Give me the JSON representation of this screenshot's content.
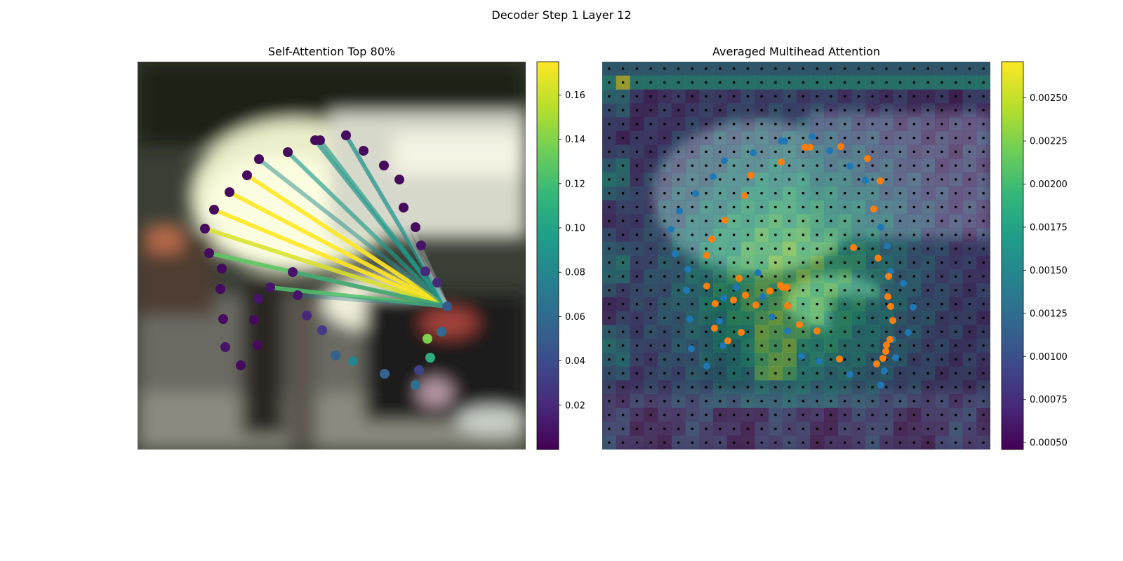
{
  "figure": {
    "title": "Decoder Step 1 Layer 12"
  },
  "colors": {
    "viridis": [
      "#440154",
      "#482878",
      "#3e4a89",
      "#31688e",
      "#26828e",
      "#1f9e89",
      "#35b779",
      "#6ece58",
      "#b5de2b",
      "#fde725"
    ],
    "orange": "#ff7f0e",
    "blue": "#1f77b4",
    "bg_dark": "#1e2a24",
    "bg_light": "#e8eed8"
  },
  "chart_data": [
    {
      "type": "scatter",
      "title": "Self-Attention Top 80%",
      "description_of_marks": "sampling points colored by attention weight, lines from query point to top-weighted points",
      "colorbar": {
        "range": [
          0.0,
          0.175
        ],
        "ticks": [
          0.02,
          0.04,
          0.06,
          0.08,
          0.1,
          0.12,
          0.14,
          0.16
        ],
        "tick_labels": [
          "0.02",
          "0.04",
          "0.06",
          "0.08",
          "0.10",
          "0.12",
          "0.14",
          "0.16"
        ]
      },
      "query_point": {
        "x": 637,
        "y": 437,
        "value": 0.05
      },
      "points": [
        {
          "x": 493,
          "y": 193,
          "value": 0.005
        },
        {
          "x": 518,
          "y": 215,
          "value": 0.005
        },
        {
          "x": 547,
          "y": 236,
          "value": 0.005
        },
        {
          "x": 569,
          "y": 256,
          "value": 0.005
        },
        {
          "x": 575,
          "y": 296,
          "value": 0.005
        },
        {
          "x": 592,
          "y": 324,
          "value": 0.005
        },
        {
          "x": 600,
          "y": 350,
          "value": 0.01
        },
        {
          "x": 606,
          "y": 387,
          "value": 0.02
        },
        {
          "x": 623,
          "y": 403,
          "value": 0.02
        },
        {
          "x": 449,
          "y": 200,
          "value": 0.005
        },
        {
          "x": 456,
          "y": 200,
          "value": 0.005
        },
        {
          "x": 410,
          "y": 217,
          "value": 0.005
        },
        {
          "x": 369,
          "y": 227,
          "value": 0.005
        },
        {
          "x": 352,
          "y": 250,
          "value": 0.005
        },
        {
          "x": 327,
          "y": 274,
          "value": 0.005
        },
        {
          "x": 305,
          "y": 299,
          "value": 0.005
        },
        {
          "x": 292,
          "y": 326,
          "value": 0.005
        },
        {
          "x": 298,
          "y": 361,
          "value": 0.005
        },
        {
          "x": 316,
          "y": 383,
          "value": 0.005
        },
        {
          "x": 314,
          "y": 412,
          "value": 0.005
        },
        {
          "x": 318,
          "y": 455,
          "value": 0.005
        },
        {
          "x": 321,
          "y": 495,
          "value": 0.01
        },
        {
          "x": 343,
          "y": 521,
          "value": 0.005
        },
        {
          "x": 367,
          "y": 492,
          "value": 0.005
        },
        {
          "x": 362,
          "y": 456,
          "value": 0.005
        },
        {
          "x": 368,
          "y": 426,
          "value": 0.01
        },
        {
          "x": 385,
          "y": 410,
          "value": 0.01
        },
        {
          "x": 417,
          "y": 388,
          "value": 0.01
        },
        {
          "x": 424,
          "y": 421,
          "value": 0.01
        },
        {
          "x": 437,
          "y": 450,
          "value": 0.02
        },
        {
          "x": 459,
          "y": 471,
          "value": 0.03
        },
        {
          "x": 478,
          "y": 507,
          "value": 0.055
        },
        {
          "x": 503,
          "y": 515,
          "value": 0.08
        },
        {
          "x": 548,
          "y": 533,
          "value": 0.055
        },
        {
          "x": 592,
          "y": 549,
          "value": 0.065
        },
        {
          "x": 597,
          "y": 528,
          "value": 0.035
        },
        {
          "x": 613,
          "y": 510,
          "value": 0.11
        },
        {
          "x": 609,
          "y": 483,
          "value": 0.14
        },
        {
          "x": 629,
          "y": 473,
          "value": 0.06
        }
      ],
      "lines": [
        {
          "to": [
            305,
            299
          ],
          "value": 0.175,
          "alpha": 0.9
        },
        {
          "to": [
            327,
            274
          ],
          "value": 0.175,
          "alpha": 0.9
        },
        {
          "to": [
            352,
            250
          ],
          "value": 0.175,
          "alpha": 0.9
        },
        {
          "to": [
            292,
            326
          ],
          "value": 0.165,
          "alpha": 0.85
        },
        {
          "to": [
            298,
            361
          ],
          "value": 0.13,
          "alpha": 0.9
        },
        {
          "to": [
            369,
            227
          ],
          "value": 0.085,
          "alpha": 0.5
        },
        {
          "to": [
            410,
            217
          ],
          "value": 0.095,
          "alpha": 0.65
        },
        {
          "to": [
            449,
            200
          ],
          "value": 0.09,
          "alpha": 0.7
        },
        {
          "to": [
            456,
            200
          ],
          "value": 0.095,
          "alpha": 0.65
        },
        {
          "to": [
            493,
            193
          ],
          "value": 0.09,
          "alpha": 0.75
        },
        {
          "to": [
            518,
            215
          ],
          "value": 0.06,
          "alpha": 0.35
        },
        {
          "to": [
            547,
            236
          ],
          "value": 0.06,
          "alpha": 0.3
        },
        {
          "to": [
            385,
            410
          ],
          "value": 0.125,
          "alpha": 0.85
        },
        {
          "to": [
            417,
            388
          ],
          "value": 0.075,
          "alpha": 0.4
        },
        {
          "to": [
            424,
            421
          ],
          "value": 0.07,
          "alpha": 0.35
        }
      ]
    },
    {
      "type": "heatmap",
      "title": "Averaged Multihead Attention",
      "grid": {
        "rows": 28,
        "cols": 28
      },
      "colorbar": {
        "range": [
          0.00046,
          0.00271
        ],
        "ticks": [
          0.0005,
          0.00075,
          0.001,
          0.00125,
          0.0015,
          0.00175,
          0.002,
          0.00225,
          0.0025
        ],
        "tick_labels": [
          "0.00050",
          "0.00075",
          "0.00100",
          "0.00125",
          "0.00150",
          "0.00175",
          "0.00200",
          "0.00225",
          "0.00250"
        ]
      },
      "orange_points": [
        [
          1147,
          210
        ],
        [
          1154,
          210
        ],
        [
          1198,
          209
        ],
        [
          1236,
          226
        ],
        [
          1113,
          231
        ],
        [
          1070,
          250
        ],
        [
          1254,
          258
        ],
        [
          1061,
          279
        ],
        [
          1245,
          298
        ],
        [
          1033,
          314
        ],
        [
          1014,
          341
        ],
        [
          1216,
          353
        ],
        [
          1251,
          368
        ],
        [
          1007,
          364
        ],
        [
          1266,
          394
        ],
        [
          1053,
          397
        ],
        [
          1007,
          408
        ],
        [
          1112,
          407
        ],
        [
          1121,
          410
        ],
        [
          1115,
          410
        ],
        [
          1097,
          415
        ],
        [
          1062,
          421
        ],
        [
          1265,
          423
        ],
        [
          1045,
          428
        ],
        [
          1019,
          433
        ],
        [
          1077,
          435
        ],
        [
          1122,
          436
        ],
        [
          1269,
          437
        ],
        [
          1272,
          457
        ],
        [
          1139,
          463
        ],
        [
          1164,
          472
        ],
        [
          1018,
          468
        ],
        [
          1056,
          474
        ],
        [
          1263,
          492
        ],
        [
          1268,
          484
        ],
        [
          1262,
          501
        ],
        [
          1037,
          486
        ],
        [
          1196,
          512
        ],
        [
          1258,
          511
        ],
        [
          1249,
          519
        ]
      ],
      "blue_points": [
        [
          1157,
          195
        ],
        [
          1113,
          201
        ],
        [
          1118,
          201
        ],
        [
          1073,
          218
        ],
        [
          1182,
          215
        ],
        [
          1032,
          229
        ],
        [
          1211,
          237
        ],
        [
          1016,
          252
        ],
        [
          1233,
          257
        ],
        [
          991,
          276
        ],
        [
          968,
          301
        ],
        [
          956,
          327
        ],
        [
          1255,
          324
        ],
        [
          1264,
          351
        ],
        [
          962,
          362
        ],
        [
          980,
          384
        ],
        [
          1269,
          387
        ],
        [
          1080,
          389
        ],
        [
          1287,
          404
        ],
        [
          978,
          414
        ],
        [
          1049,
          410
        ],
        [
          1087,
          423
        ],
        [
          1301,
          438
        ],
        [
          1031,
          425
        ],
        [
          1100,
          452
        ],
        [
          1025,
          458
        ],
        [
          983,
          455
        ],
        [
          1122,
          472
        ],
        [
          1294,
          474
        ],
        [
          1272,
          484
        ],
        [
          985,
          497
        ],
        [
          1030,
          493
        ],
        [
          1142,
          508
        ],
        [
          1167,
          515
        ],
        [
          1276,
          510
        ],
        [
          1007,
          522
        ],
        [
          1260,
          529
        ],
        [
          1211,
          534
        ],
        [
          1255,
          549
        ]
      ]
    }
  ]
}
